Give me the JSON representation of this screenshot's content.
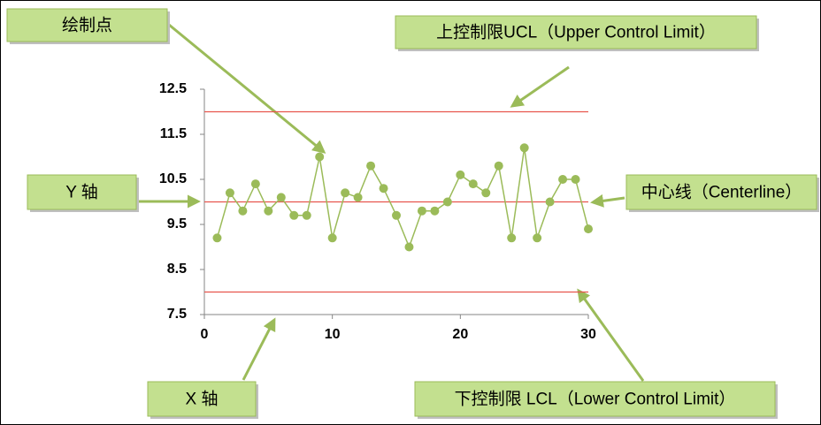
{
  "chart_data": {
    "type": "line",
    "x": [
      1,
      2,
      3,
      4,
      5,
      6,
      7,
      8,
      9,
      10,
      11,
      12,
      13,
      14,
      15,
      16,
      17,
      18,
      19,
      20,
      21,
      22,
      23,
      24,
      25,
      26,
      27,
      28,
      29,
      30
    ],
    "values": [
      9.2,
      10.2,
      9.8,
      10.4,
      9.8,
      10.1,
      9.7,
      9.7,
      11.0,
      9.2,
      10.2,
      10.1,
      10.8,
      10.3,
      9.7,
      9.0,
      9.8,
      9.8,
      10.0,
      10.6,
      10.4,
      10.2,
      10.8,
      9.2,
      11.2,
      9.2,
      10.0,
      10.5,
      10.5,
      9.4
    ],
    "color": "#9bbb59",
    "xlim": [
      0,
      30
    ],
    "xticks": [
      0,
      10,
      20,
      30
    ],
    "ylim": [
      7.5,
      12.5
    ],
    "yticks": [
      7.5,
      8.5,
      9.5,
      10.5,
      11.5,
      12.5
    ],
    "reference_lines": [
      {
        "value": 12,
        "color": "#e8564e"
      },
      {
        "value": 10,
        "color": "#e8564e"
      },
      {
        "value": 8,
        "color": "#e8564e"
      }
    ],
    "annotations": [
      {
        "text": "绘制点"
      },
      {
        "text": "上控制限UCL（Upper  Control Limit）"
      },
      {
        "text": "Y 轴"
      },
      {
        "text": "中心线（Centerline）"
      },
      {
        "text": "X 轴"
      },
      {
        "text": "下控制限 LCL（Lower Control Limit）"
      }
    ]
  }
}
